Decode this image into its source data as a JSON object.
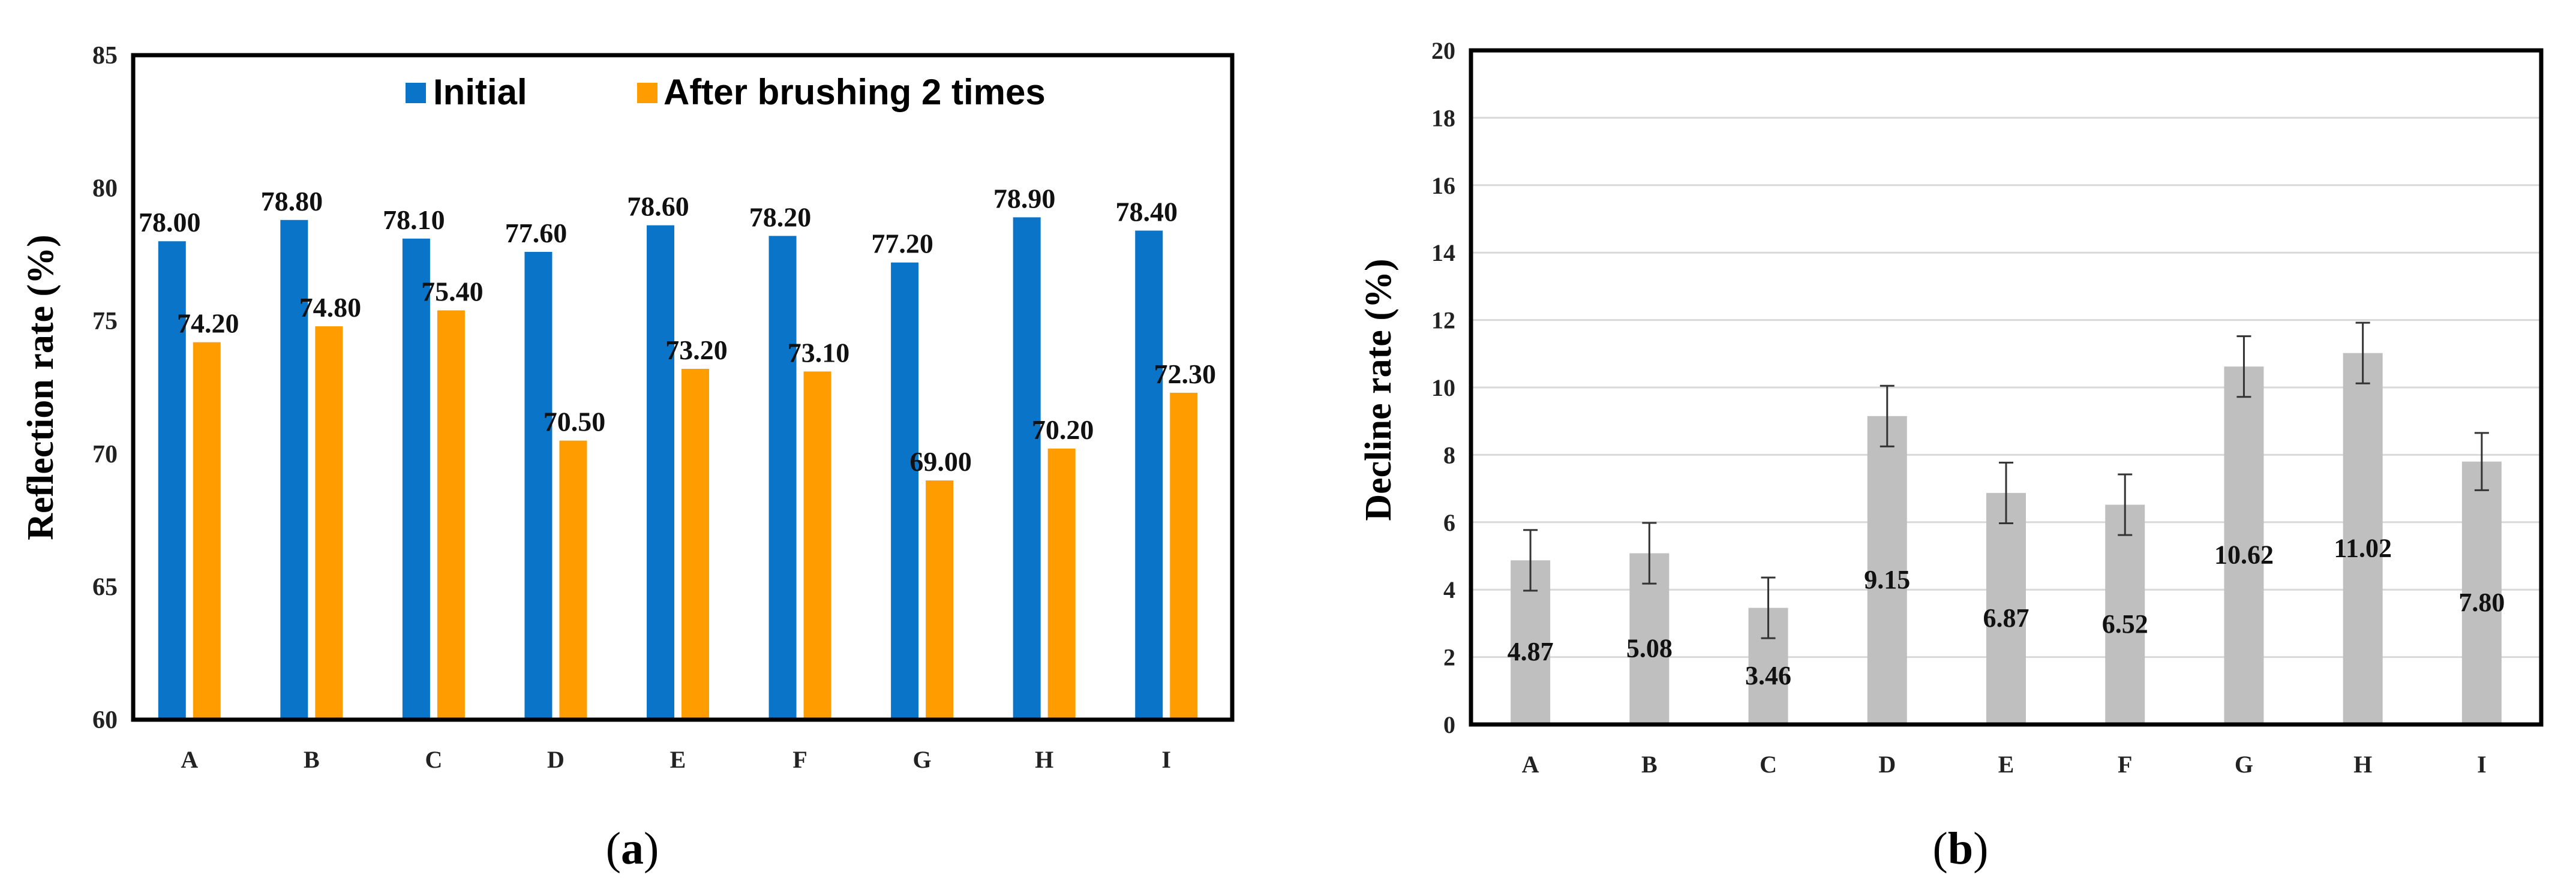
{
  "chart_data": [
    {
      "panel_label": "a",
      "type": "bar",
      "title": "",
      "xlabel": "",
      "ylabel": "Reflection rate (%)",
      "ylim": [
        60,
        85
      ],
      "yticks": [
        60,
        65,
        70,
        75,
        80,
        85
      ],
      "grid": false,
      "legend_position": "top",
      "categories": [
        "A",
        "B",
        "C",
        "D",
        "E",
        "F",
        "G",
        "H",
        "I"
      ],
      "series": [
        {
          "name": "Initial",
          "color": "#0a74c9",
          "values": [
            78.0,
            78.8,
            78.1,
            77.6,
            78.6,
            78.2,
            77.2,
            78.9,
            78.4
          ],
          "labels": [
            "78.00",
            "78.80",
            "78.10",
            "77.60",
            "78.60",
            "78.20",
            "77.20",
            "78.90",
            "78.40"
          ]
        },
        {
          "name": "After brushing 2 times",
          "color": "#ff9d00",
          "values": [
            74.2,
            74.8,
            75.4,
            70.5,
            73.2,
            73.1,
            69.0,
            70.2,
            72.3
          ],
          "labels": [
            "74.20",
            "74.80",
            "75.40",
            "70.50",
            "73.20",
            "73.10",
            "69.00",
            "70.20",
            "72.30"
          ]
        }
      ]
    },
    {
      "panel_label": "b",
      "type": "bar",
      "title": "",
      "xlabel": "",
      "ylabel": "Decline rate (%)",
      "ylim": [
        0,
        20
      ],
      "yticks": [
        0,
        2,
        4,
        6,
        8,
        10,
        12,
        14,
        16,
        18,
        20
      ],
      "grid": true,
      "categories": [
        "A",
        "B",
        "C",
        "D",
        "E",
        "F",
        "G",
        "H",
        "I"
      ],
      "series": [
        {
          "name": "Decline rate",
          "color": "#bfbfbf",
          "values": [
            4.87,
            5.08,
            3.46,
            9.15,
            6.87,
            6.52,
            10.62,
            11.02,
            7.8
          ],
          "labels": [
            "4.87",
            "5.08",
            "3.46",
            "9.15",
            "6.87",
            "6.52",
            "10.62",
            "11.02",
            "7.80"
          ],
          "error": [
            0.9,
            0.9,
            0.9,
            0.9,
            0.9,
            0.9,
            0.9,
            0.9,
            0.85
          ]
        }
      ]
    }
  ]
}
